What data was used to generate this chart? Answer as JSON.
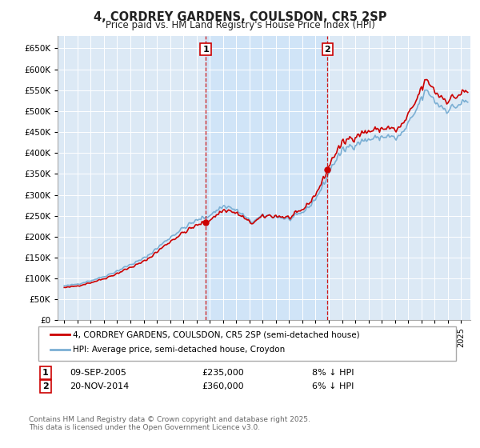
{
  "title": "4, CORDREY GARDENS, COULSDON, CR5 2SP",
  "subtitle": "Price paid vs. HM Land Registry's House Price Index (HPI)",
  "legend_line1": "4, CORDREY GARDENS, COULSDON, CR5 2SP (semi-detached house)",
  "legend_line2": "HPI: Average price, semi-detached house, Croydon",
  "annotation1_label": "1",
  "annotation1_date": "09-SEP-2005",
  "annotation1_price": "£235,000",
  "annotation1_hpi": "8% ↓ HPI",
  "annotation2_label": "2",
  "annotation2_date": "20-NOV-2014",
  "annotation2_price": "£360,000",
  "annotation2_hpi": "6% ↓ HPI",
  "sale1_x": 2005.69,
  "sale1_y": 235000,
  "sale2_x": 2014.89,
  "sale2_y": 360000,
  "red_line_color": "#cc0000",
  "blue_line_color": "#7bafd4",
  "shade_color": "#d0e4f7",
  "background_color": "#ffffff",
  "plot_bg_color": "#dce9f5",
  "footer": "Contains HM Land Registry data © Crown copyright and database right 2025.\nThis data is licensed under the Open Government Licence v3.0.",
  "ylim": [
    0,
    680000
  ],
  "yticks": [
    0,
    50000,
    100000,
    150000,
    200000,
    250000,
    300000,
    350000,
    400000,
    450000,
    500000,
    550000,
    600000,
    650000
  ],
  "xlim": [
    1994.5,
    2025.7
  ]
}
